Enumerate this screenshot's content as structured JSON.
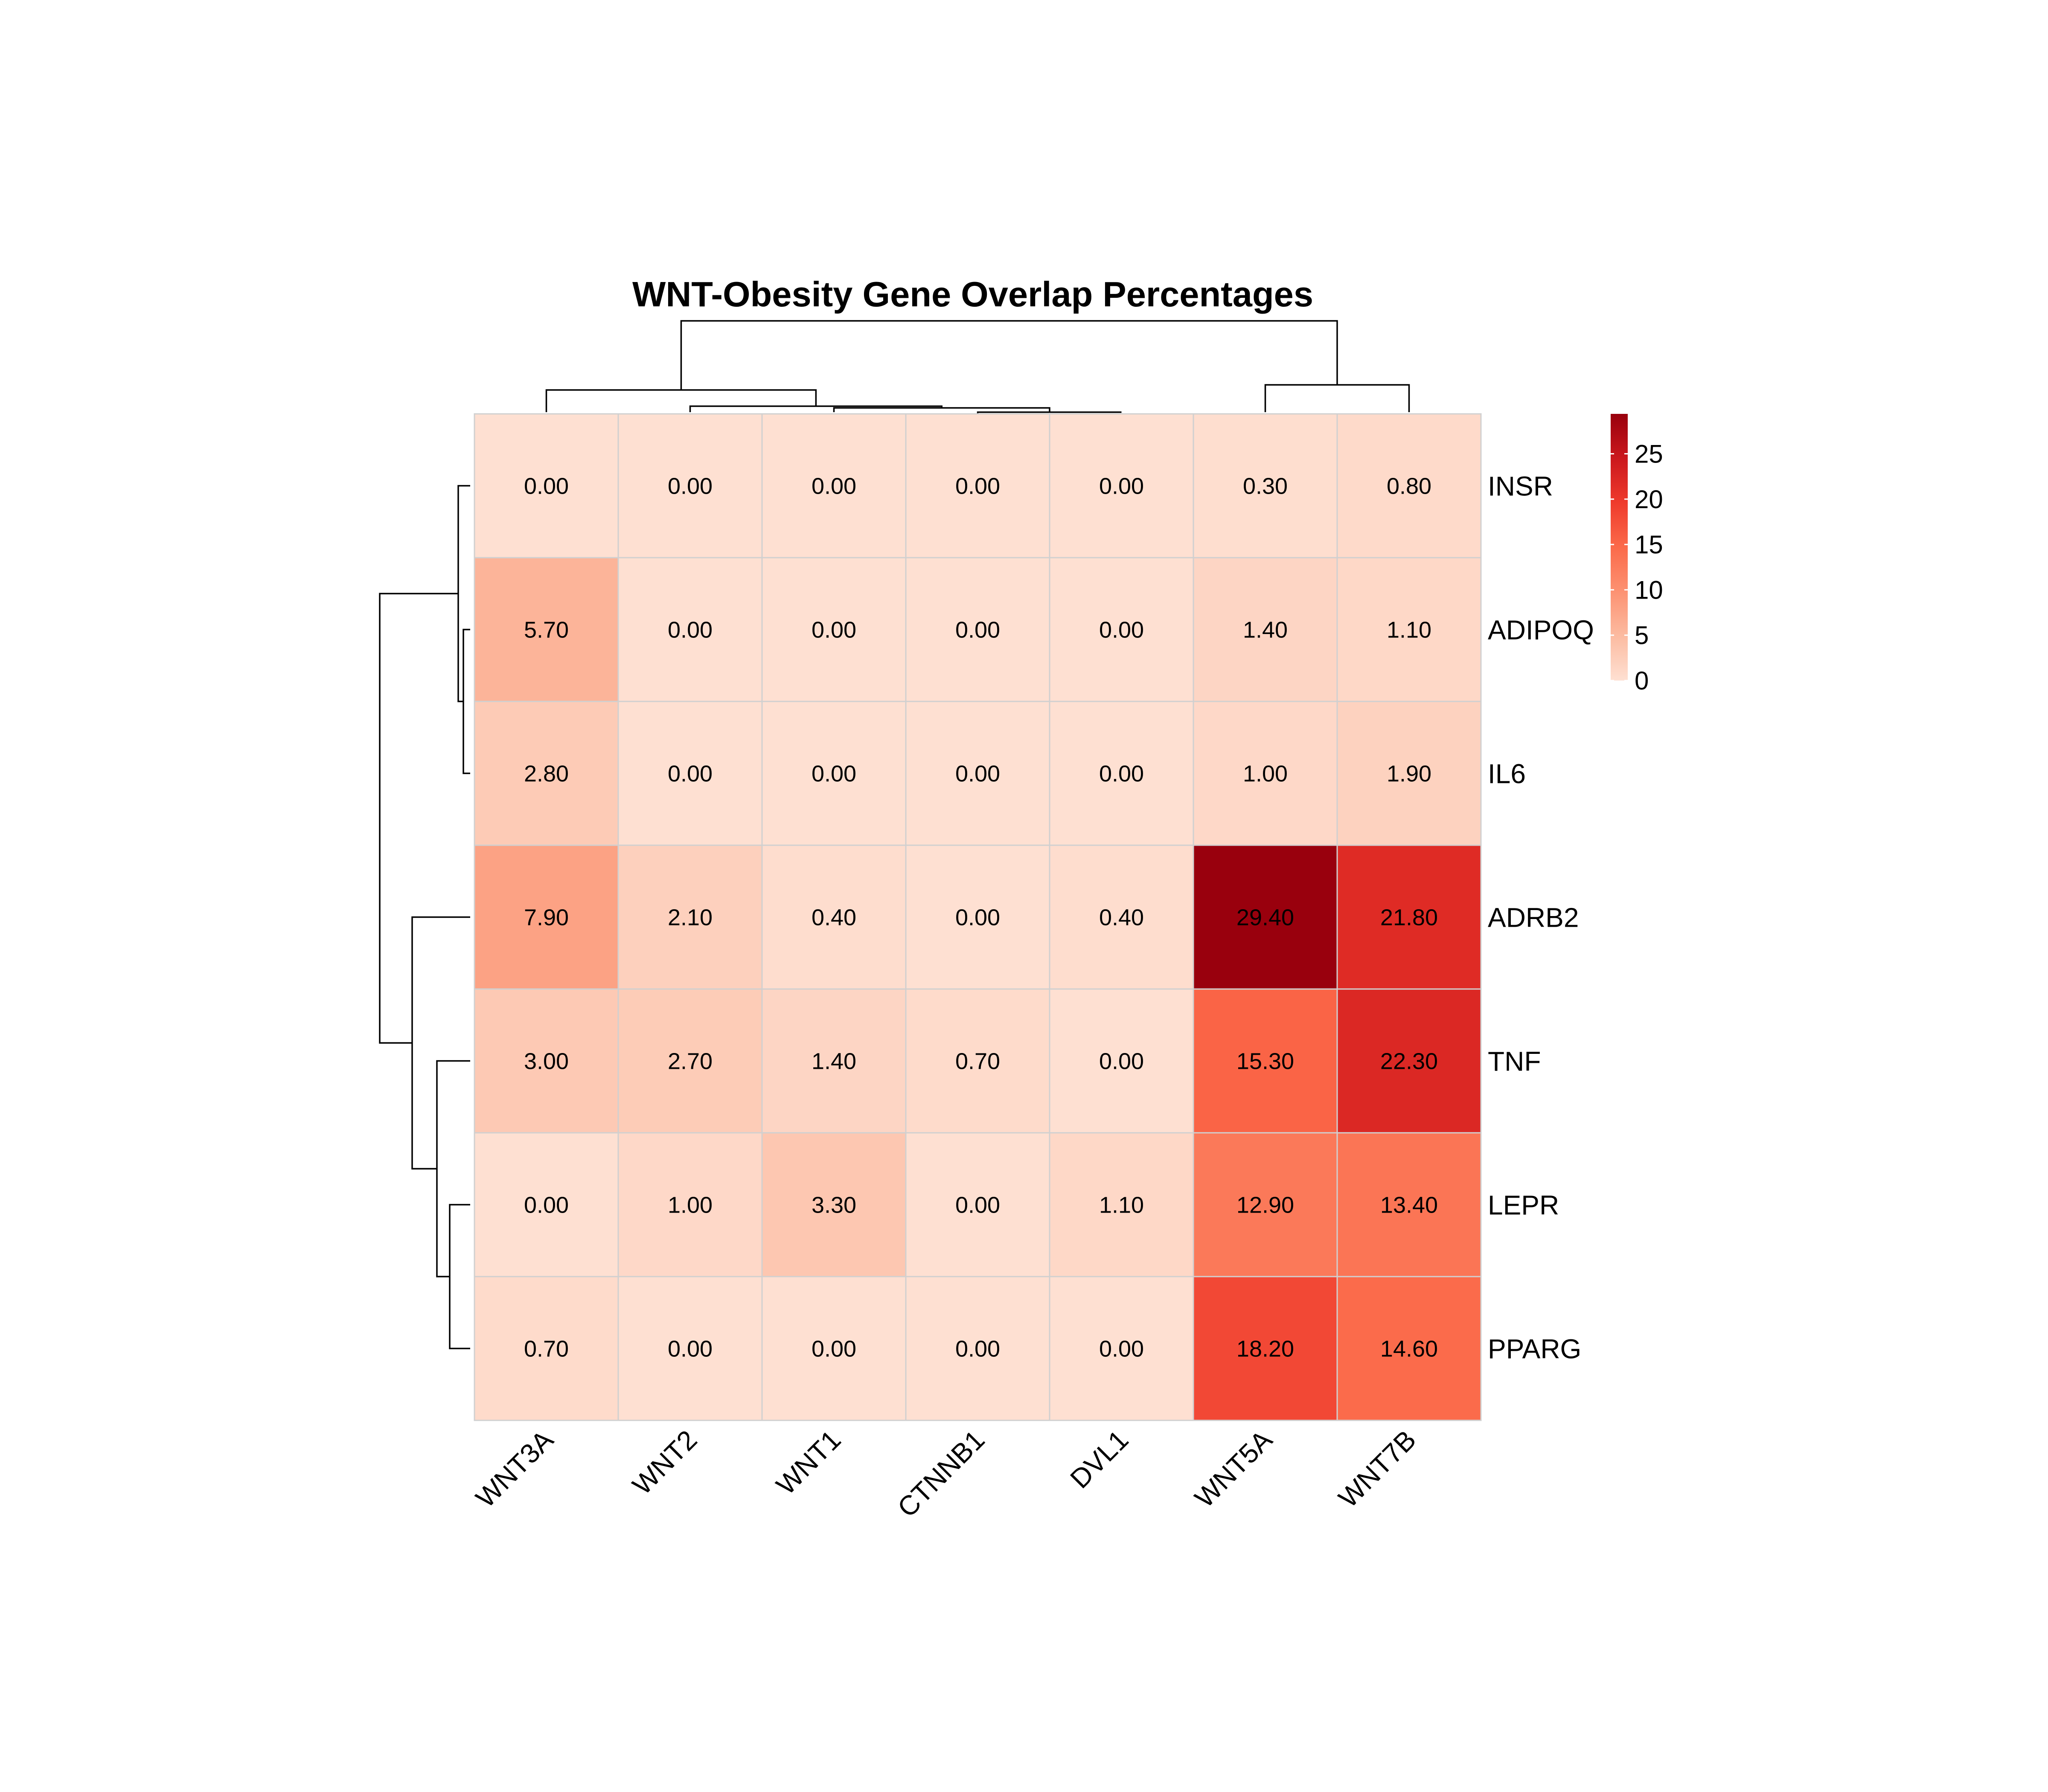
{
  "chart_data": {
    "type": "heatmap",
    "title": "WNT-Obesity Gene Overlap Percentages",
    "columns": [
      "WNT3A",
      "WNT2",
      "WNT1",
      "CTNNB1",
      "DVL1",
      "WNT5A",
      "WNT7B"
    ],
    "rows": [
      "INSR",
      "ADIPOQ",
      "IL6",
      "ADRB2",
      "TNF",
      "LEPR",
      "PPARG"
    ],
    "values": [
      [
        0.0,
        0.0,
        0.0,
        0.0,
        0.0,
        0.3,
        0.8
      ],
      [
        5.7,
        0.0,
        0.0,
        0.0,
        0.0,
        1.4,
        1.1
      ],
      [
        2.8,
        0.0,
        0.0,
        0.0,
        0.0,
        1.0,
        1.9
      ],
      [
        7.9,
        2.1,
        0.4,
        0.0,
        0.4,
        29.4,
        21.8
      ],
      [
        3.0,
        2.7,
        1.4,
        0.7,
        0.0,
        15.3,
        22.3
      ],
      [
        0.0,
        1.0,
        3.3,
        0.0,
        1.1,
        12.9,
        13.4
      ],
      [
        0.7,
        0.0,
        0.0,
        0.0,
        0.0,
        18.2,
        14.6
      ]
    ],
    "cell_labels": [
      [
        "0.00",
        "0.00",
        "0.00",
        "0.00",
        "0.00",
        "0.30",
        "0.80"
      ],
      [
        "5.70",
        "0.00",
        "0.00",
        "0.00",
        "0.00",
        "1.40",
        "1.10"
      ],
      [
        "2.80",
        "0.00",
        "0.00",
        "0.00",
        "0.00",
        "1.00",
        "1.90"
      ],
      [
        "7.90",
        "2.10",
        "0.40",
        "0.00",
        "0.40",
        "29.40",
        "21.80"
      ],
      [
        "3.00",
        "2.70",
        "1.40",
        "0.70",
        "0.00",
        "15.30",
        "22.30"
      ],
      [
        "0.00",
        "1.00",
        "3.30",
        "0.00",
        "1.10",
        "12.90",
        "13.40"
      ],
      [
        "0.70",
        "0.00",
        "0.00",
        "0.00",
        "0.00",
        "18.20",
        "14.60"
      ]
    ],
    "color_scale": {
      "range": [
        0,
        29.4
      ],
      "ticks": [
        0,
        5,
        10,
        15,
        20,
        25
      ],
      "colors": [
        "#fee0d2",
        "#fcbba1",
        "#fc9272",
        "#fb6a4a",
        "#ef3b2c",
        "#cb181d",
        "#99000d"
      ]
    },
    "row_dendrogram": true,
    "column_dendrogram": true,
    "legend_position": "top-right"
  }
}
